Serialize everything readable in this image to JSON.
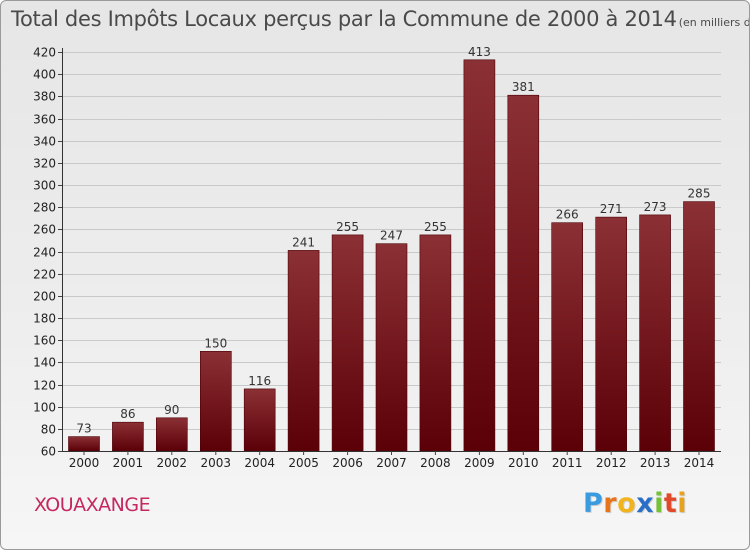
{
  "header": {
    "title": "Total des Impôts Locaux perçus par la Commune de 2000 à 2014",
    "unit": "(en milliers d'€)"
  },
  "commune": "XOUAXANGE",
  "logo": {
    "letters": [
      "P",
      "r",
      "o",
      "x",
      "i",
      "t",
      "i"
    ],
    "colors": [
      "#3b9be0",
      "#e8741a",
      "#f0b41e",
      "#2a6fc7",
      "#76c03a",
      "#e04a2a",
      "#e8a21e"
    ]
  },
  "chart_data": {
    "type": "bar",
    "title": "Total des Impôts Locaux perçus par la Commune de 2000 à 2014",
    "xlabel": "",
    "ylabel": "(en milliers d'€)",
    "categories": [
      "2000",
      "2001",
      "2002",
      "2003",
      "2004",
      "2005",
      "2006",
      "2007",
      "2008",
      "2009",
      "2010",
      "2011",
      "2012",
      "2013",
      "2014"
    ],
    "values": [
      73,
      86,
      90,
      150,
      116,
      241,
      255,
      247,
      255,
      413,
      381,
      266,
      271,
      273,
      285
    ],
    "value_labels": [
      "73",
      "86",
      "90",
      "150",
      "116",
      "241",
      "255",
      "247",
      "255",
      "413",
      "381",
      "266",
      "271",
      "273",
      "285"
    ],
    "ylim": [
      60,
      420
    ],
    "yticks": [
      60,
      80,
      100,
      120,
      140,
      160,
      180,
      200,
      220,
      240,
      260,
      280,
      300,
      320,
      340,
      360,
      380,
      400,
      420
    ],
    "grid": true,
    "colors": {
      "bar_top": "#8b3034",
      "bar_bottom": "#5c0008",
      "value_label": "#333333",
      "tick_label": "#222222"
    }
  }
}
